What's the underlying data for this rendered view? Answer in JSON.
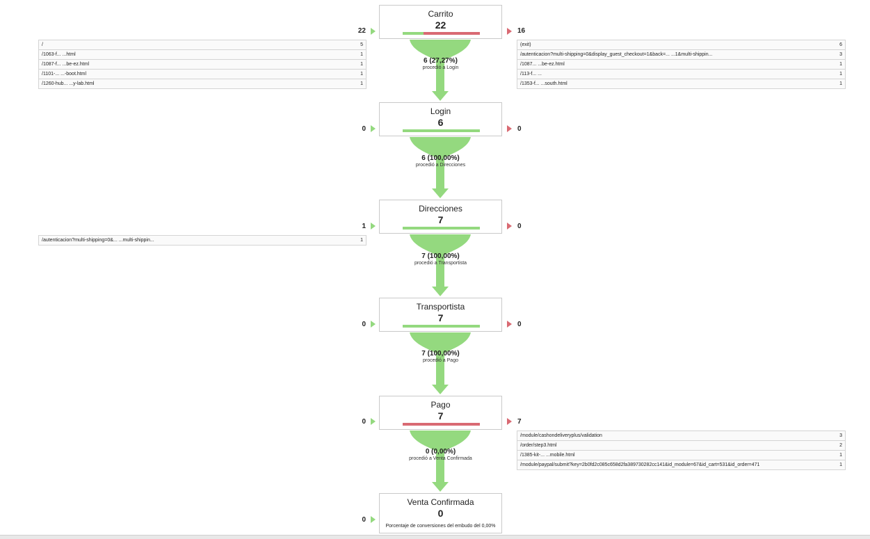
{
  "chart_data": {
    "type": "funnel",
    "stages": [
      {
        "name": "Carrito",
        "value": "22",
        "entrances": "22",
        "exits": "16",
        "exit_share": 0.73,
        "proceed_value": "6 (27,27%)",
        "proceed_text": "procedió a Login",
        "entry_sources": [
          {
            "path": "/",
            "count": "5"
          },
          {
            "path": "/1063-f... ...html",
            "count": "1"
          },
          {
            "path": "/1087-f... ...be-ez.html",
            "count": "1"
          },
          {
            "path": "/1101-... ...-boot.html",
            "count": "1"
          },
          {
            "path": "/1260-hub... ...y-lab.html",
            "count": "1"
          }
        ],
        "exit_destinations": [
          {
            "path": "(exit)",
            "count": "6"
          },
          {
            "path": "/autenticacion?multi-shipping=0&display_guest_checkout=1&back=... ...1&multi-shippin...",
            "count": "3"
          },
          {
            "path": "/1087... ...be-ez.html",
            "count": "1"
          },
          {
            "path": "/113-f... ...",
            "count": "1"
          },
          {
            "path": "/1353-f... ...south.html",
            "count": "1"
          }
        ]
      },
      {
        "name": "Login",
        "value": "6",
        "entrances": "0",
        "exits": "0",
        "exit_share": 0,
        "proceed_value": "6 (100,00%)",
        "proceed_text": "procedió a Direcciones",
        "entry_sources": [],
        "exit_destinations": []
      },
      {
        "name": "Direcciones",
        "value": "7",
        "entrances": "1",
        "exits": "0",
        "exit_share": 0,
        "proceed_value": "7 (100,00%)",
        "proceed_text": "procedió a Transportista",
        "entry_sources": [
          {
            "path": "/autenticacion?multi-shipping=0&... ...multi-shippin...",
            "count": "1"
          }
        ],
        "exit_destinations": []
      },
      {
        "name": "Transportista",
        "value": "7",
        "entrances": "0",
        "exits": "0",
        "exit_share": 0,
        "proceed_value": "7 (100,00%)",
        "proceed_text": "procedió a Pago",
        "entry_sources": [],
        "exit_destinations": []
      },
      {
        "name": "Pago",
        "value": "7",
        "entrances": "0",
        "exits": "7",
        "exit_share": 1,
        "proceed_value": "0 (0,00%)",
        "proceed_text": "procedió a Venta Confirmada",
        "entry_sources": [],
        "exit_destinations": [
          {
            "path": "/module/cashondeliveryplus/validation",
            "count": "3"
          },
          {
            "path": "/order/step3.html",
            "count": "2"
          },
          {
            "path": "/1385-kit-... ...mobile.html",
            "count": "1"
          },
          {
            "path": "/module/paypal/submit?key=2b0fd2c085c658d2fa389730282cc141&id_module=67&id_cart=531&id_order=471",
            "count": "1"
          }
        ]
      },
      {
        "name": "Venta Confirmada",
        "value": "0",
        "entrances": "0",
        "exits": "",
        "conversion_text": "Porcentaje de conversiones del embudo del 0,00%",
        "entry_sources": [],
        "exit_destinations": []
      }
    ]
  },
  "colors": {
    "proceed": "#94d97f",
    "exit": "#d96a73",
    "border": "#c9c9c9"
  }
}
